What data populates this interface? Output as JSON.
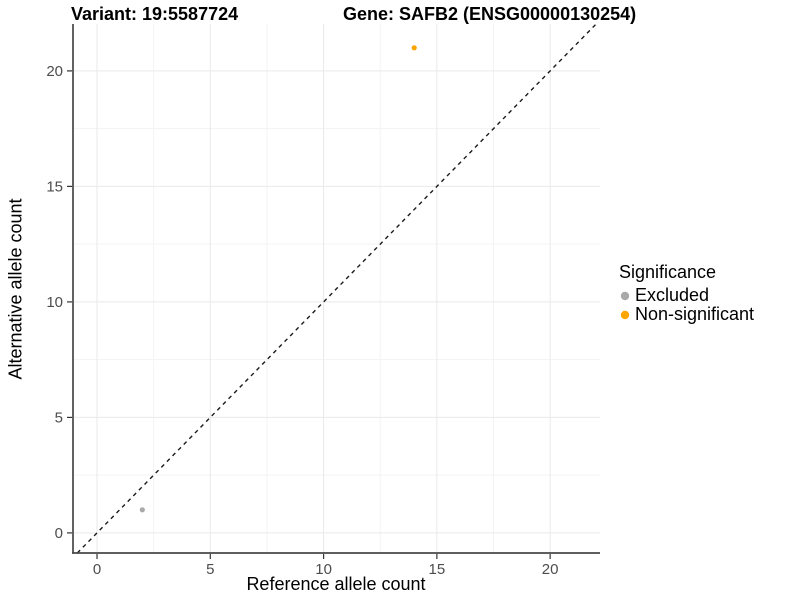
{
  "titles": {
    "variant": "Variant: 19:5587724",
    "gene": "Gene: SAFB2 (ENSG00000130254)"
  },
  "axes": {
    "x_label": "Reference allele count",
    "y_label": "Alternative allele count"
  },
  "legend": {
    "title": "Significance",
    "items": [
      {
        "label": "Excluded",
        "color": "#a9a9a9"
      },
      {
        "label": "Non-significant",
        "color": "#ffa500"
      }
    ]
  },
  "chart_data": {
    "type": "scatter",
    "title": "Variant: 19:5587724 — Gene: SAFB2 (ENSG00000130254)",
    "xlabel": "Reference allele count",
    "ylabel": "Alternative allele count",
    "xlim": [
      -1.06,
      22.2
    ],
    "ylim": [
      -0.87,
      22.03
    ],
    "x_ticks": [
      0,
      5,
      10,
      15,
      20
    ],
    "y_ticks": [
      0,
      5,
      10,
      15,
      20
    ],
    "x_minor": [
      2.5,
      7.5,
      12.5,
      17.5
    ],
    "y_minor": [
      2.5,
      7.5,
      12.5,
      17.5
    ],
    "grid": true,
    "legend_position": "right",
    "series": [
      {
        "name": "Excluded",
        "color": "#a9a9a9",
        "points": [
          [
            2,
            1
          ]
        ]
      },
      {
        "name": "Non-significant",
        "color": "#ffa500",
        "points": [
          [
            14,
            21
          ]
        ]
      }
    ],
    "reference_line": {
      "slope": 1,
      "intercept": 0,
      "style": "dashed",
      "color": "#1a1a1a"
    }
  },
  "style": {
    "major_grid_color": "#e9e9e9",
    "minor_grid_color": "#f3f3f3",
    "axis_line_color": "#474747",
    "tick_color": "#333333",
    "tick_label_color": "#4d4d4d"
  }
}
